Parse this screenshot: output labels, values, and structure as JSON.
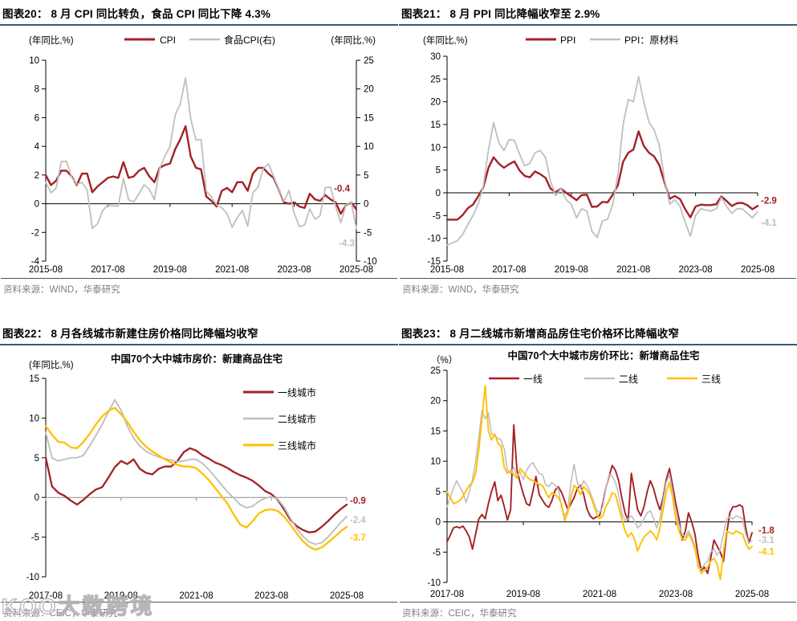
{
  "style": {
    "accent_red": "#A32126",
    "line_gray": "#BFBFBF",
    "line_yellow": "#FFC000",
    "rule_color": "#3D5874",
    "source_text_color": "#7F7F7F"
  },
  "watermark": {
    "text": "KOO大数跨境"
  },
  "chart_data": [
    {
      "type": "line",
      "title": "图表20：  8 月 CPI 同比转负，食品 CPI 同比下降 4.3%",
      "source": "资料来源：WIND，华泰研究",
      "unit_left": "(年同比,%)",
      "unit_right": "(年同比,%)",
      "x_ticks": [
        "2015-08",
        "2017-08",
        "2019-08",
        "2021-08",
        "2023-08",
        "2025-08"
      ],
      "y_left_axis": {
        "min": -4,
        "max": 10,
        "step": 2
      },
      "y_right_axis": {
        "min": -10,
        "max": 25,
        "step": 5
      },
      "legend_position": "top-center-row",
      "series": [
        {
          "name": "CPI",
          "axis": "left",
          "color": "#A32126",
          "end_label": "-0.4",
          "values": [
            2.0,
            1.3,
            1.6,
            2.3,
            2.3,
            1.9,
            1.3,
            2.1,
            2.1,
            0.8,
            1.2,
            1.5,
            1.8,
            1.9,
            1.8,
            2.9,
            1.8,
            1.9,
            2.3,
            2.5,
            1.9,
            1.5,
            2.5,
            2.7,
            2.8,
            3.8,
            4.5,
            5.4,
            3.3,
            2.5,
            2.4,
            0.5,
            0.2,
            -0.2,
            0.9,
            1.1,
            0.8,
            1.5,
            1.5,
            0.9,
            2.1,
            2.5,
            2.5,
            2.1,
            1.8,
            1.0,
            0.1,
            0.0,
            0.1,
            -0.2,
            -0.3,
            0.7,
            0.3,
            0.2,
            0.6,
            0.3,
            0.1,
            -0.7,
            -0.1,
            0.1,
            -0.4
          ]
        },
        {
          "name": "食品CPI(右)",
          "axis": "right",
          "color": "#BFBFBF",
          "end_label": "-4.3",
          "values": [
            3.7,
            1.9,
            2.7,
            7.3,
            7.4,
            4.6,
            3.4,
            3.7,
            2.4,
            -4.3,
            -3.5,
            -1.2,
            -0.2,
            -0.4,
            -0.4,
            4.4,
            0.7,
            0.3,
            1.7,
            3.3,
            2.5,
            0.7,
            6.1,
            8.3,
            10.0,
            15.5,
            17.4,
            21.9,
            14.8,
            11.1,
            11.2,
            2.2,
            1.2,
            -0.2,
            -0.7,
            -1.7,
            -4.1,
            -2.4,
            -1.2,
            -3.9,
            1.9,
            2.9,
            6.1,
            7.0,
            4.8,
            2.6,
            0.4,
            2.3,
            -1.7,
            -4.0,
            -3.7,
            -0.9,
            -2.7,
            -2.1,
            2.8,
            2.9,
            -0.5,
            -3.3,
            -0.2,
            0.3,
            -4.3
          ]
        }
      ]
    },
    {
      "type": "line",
      "title": "图表21：  8 月 PPI 同比降幅收窄至 2.9%",
      "source": "资料来源：WIND，华泰研究",
      "unit_left": "(年同比,%)",
      "x_ticks": [
        "2015-08",
        "2017-08",
        "2019-08",
        "2021-08",
        "2023-08",
        "2025-08"
      ],
      "y_left_axis": {
        "min": -15,
        "max": 30,
        "step": 5
      },
      "legend_position": "top-center-row",
      "series": [
        {
          "name": "PPI",
          "axis": "left",
          "color": "#A32126",
          "end_label": "-2.9",
          "values": [
            -5.9,
            -5.9,
            -5.9,
            -4.9,
            -3.4,
            -2.6,
            -0.8,
            1.2,
            5.5,
            7.8,
            6.4,
            5.5,
            6.3,
            6.9,
            4.9,
            3.7,
            3.4,
            4.7,
            4.1,
            3.3,
            0.9,
            0.1,
            0.9,
            0.0,
            -0.8,
            -1.6,
            -0.5,
            -0.4,
            -3.1,
            -3.0,
            -2.0,
            -2.1,
            -0.4,
            1.7,
            6.8,
            8.8,
            9.5,
            13.5,
            10.3,
            8.8,
            8.0,
            6.1,
            2.3,
            -1.3,
            -0.7,
            -1.4,
            -3.6,
            -5.4,
            -3.0,
            -2.6,
            -2.7,
            -2.7,
            -2.5,
            -0.8,
            -1.8,
            -2.9,
            -2.3,
            -2.2,
            -2.7,
            -3.6,
            -2.9
          ]
        },
        {
          "name": "PPI：原材料",
          "axis": "left",
          "color": "#BFBFBF",
          "end_label": "-4.1",
          "values": [
            -11.5,
            -11.0,
            -10.5,
            -9.2,
            -7.0,
            -5.0,
            -2.5,
            1.5,
            9.5,
            15.4,
            11.0,
            9.3,
            11.7,
            11.5,
            8.5,
            5.9,
            6.5,
            8.8,
            9.3,
            7.8,
            2.5,
            -0.6,
            0.9,
            -1.5,
            -2.5,
            -5.5,
            -3.5,
            -4.0,
            -8.5,
            -9.8,
            -6.2,
            -5.8,
            -2.5,
            4.0,
            15.0,
            20.5,
            20.0,
            25.5,
            20.0,
            15.5,
            13.8,
            10.5,
            3.0,
            -2.5,
            -1.5,
            -3.0,
            -6.5,
            -9.5,
            -5.0,
            -3.5,
            -3.8,
            -4.0,
            -3.5,
            -1.0,
            -3.0,
            -4.5,
            -3.5,
            -3.5,
            -4.5,
            -5.5,
            -4.1
          ]
        }
      ]
    },
    {
      "type": "line",
      "title": "图表22：  8 月各线城市新建住房价格同比降幅均收窄",
      "subtitle": "中国70个大中城市房价：新建商品住宅",
      "source": "资料来源：CEIC，华泰研究",
      "unit_left": "(年同比,%)",
      "x_ticks": [
        "2017-08",
        "2019-08",
        "2021-08",
        "2023-08",
        "2025-08"
      ],
      "y_left_axis": {
        "min": -10,
        "max": 15,
        "step": 5
      },
      "legend_position": "right-column",
      "series": [
        {
          "name": "一线城市",
          "axis": "left",
          "color": "#A32126",
          "end_label": "-0.9",
          "values": [
            5.0,
            1.4,
            0.6,
            0.2,
            -0.4,
            -0.9,
            -0.3,
            0.4,
            1.0,
            1.3,
            2.5,
            3.8,
            4.6,
            4.2,
            4.8,
            3.6,
            3.1,
            2.9,
            3.6,
            3.9,
            3.9,
            4.6,
            5.7,
            6.2,
            5.9,
            5.3,
            4.9,
            4.4,
            4.1,
            3.7,
            3.2,
            2.8,
            2.5,
            2.1,
            1.5,
            0.8,
            0.4,
            -0.3,
            -1.5,
            -2.8,
            -3.6,
            -4.1,
            -4.4,
            -4.3,
            -3.7,
            -3.0,
            -2.2,
            -1.5,
            -0.9
          ]
        },
        {
          "name": "二线城市",
          "axis": "left",
          "color": "#BFBFBF",
          "end_label": "-2.4",
          "values": [
            8.2,
            5.0,
            4.6,
            4.8,
            5.0,
            5.0,
            5.3,
            6.5,
            7.8,
            9.2,
            10.8,
            12.3,
            11.0,
            9.0,
            7.5,
            6.5,
            5.8,
            5.4,
            5.1,
            4.9,
            4.7,
            4.5,
            4.6,
            4.8,
            4.8,
            4.3,
            3.5,
            2.6,
            1.6,
            0.7,
            -0.1,
            -0.9,
            -1.3,
            -1.1,
            -0.5,
            -0.1,
            0.1,
            -0.2,
            -1.2,
            -2.6,
            -3.9,
            -4.9,
            -5.6,
            -5.9,
            -5.7,
            -5.0,
            -4.1,
            -3.2,
            -2.4
          ]
        },
        {
          "name": "三线城市",
          "axis": "left",
          "color": "#FFC000",
          "end_label": "-3.7",
          "values": [
            9.0,
            7.9,
            7.0,
            6.9,
            6.3,
            6.2,
            7.0,
            8.0,
            9.2,
            10.2,
            10.9,
            11.3,
            10.5,
            9.5,
            8.3,
            7.2,
            6.4,
            5.8,
            5.3,
            4.8,
            4.4,
            4.1,
            3.9,
            3.9,
            3.7,
            3.0,
            2.2,
            1.2,
            0.2,
            -0.8,
            -2.2,
            -3.4,
            -3.8,
            -3.0,
            -2.0,
            -1.6,
            -1.5,
            -1.7,
            -2.4,
            -3.4,
            -4.5,
            -5.5,
            -6.2,
            -6.6,
            -6.3,
            -5.7,
            -5.0,
            -4.3,
            -3.7
          ]
        }
      ]
    },
    {
      "type": "line",
      "title": "图表23：  8 月二线城市新增商品房住宅价格环比降幅收窄",
      "subtitle": "中国70个大中城市房价环比：新增商品住宅",
      "source": "资料来源：CEIC，华泰研究",
      "unit_left": "（%）",
      "x_ticks": [
        "2017-08",
        "2019-08",
        "2021-08",
        "2023-08",
        "2025-08"
      ],
      "y_left_axis": {
        "min": -10,
        "max": 25,
        "step": 5
      },
      "legend_position": "top-row",
      "series": [
        {
          "name": "一线",
          "axis": "left",
          "color": "#A32126",
          "end_label": "-1.8",
          "values": [
            -3.3,
            -2.2,
            -1.0,
            -0.8,
            -1.0,
            -0.7,
            -1.5,
            -2.5,
            -4.5,
            -2.0,
            0.5,
            1.2,
            0.5,
            3.0,
            5.0,
            6.6,
            3.5,
            4.4,
            2.5,
            0.3,
            2.0,
            16.0,
            8.5,
            6.5,
            4.6,
            3.0,
            2.7,
            5.0,
            7.5,
            4.5,
            3.6,
            2.8,
            2.4,
            3.5,
            5.2,
            5.8,
            4.9,
            3.5,
            2.0,
            3.0,
            4.0,
            5.5,
            6.0,
            4.5,
            2.2,
            1.0,
            0.5,
            0.8,
            1.0,
            3.0,
            5.6,
            7.5,
            9.3,
            8.5,
            6.8,
            4.0,
            1.5,
            0.2,
            8.0,
            5.0,
            2.0,
            1.0,
            2.5,
            5.0,
            6.8,
            5.5,
            3.5,
            2.0,
            4.0,
            7.0,
            8.8,
            6.0,
            3.0,
            0.5,
            -3.0,
            -1.5,
            1.5,
            0.0,
            -2.0,
            -5.5,
            -8.0,
            -7.5,
            -8.5,
            -6.0,
            -3.0,
            -4.0,
            -5.0,
            -6.5,
            -2.0,
            1.5,
            2.5,
            2.5,
            2.8,
            2.5,
            -1.0,
            -3.5,
            -1.8
          ]
        },
        {
          "name": "二线",
          "axis": "left",
          "color": "#BFBFBF",
          "end_label": "-3.1",
          "values": [
            2.5,
            4.0,
            5.5,
            6.8,
            5.8,
            4.8,
            3.2,
            5.0,
            7.0,
            10.0,
            14.0,
            18.4,
            17.0,
            18.0,
            14.5,
            14.2,
            13.8,
            13.5,
            12.0,
            8.5,
            8.0,
            9.0,
            7.5,
            8.2,
            7.0,
            8.5,
            9.3,
            9.8,
            8.8,
            8.0,
            7.8,
            6.2,
            5.8,
            6.5,
            6.0,
            5.5,
            2.5,
            1.0,
            2.0,
            6.5,
            9.5,
            6.5,
            5.5,
            6.8,
            6.0,
            5.0,
            3.5,
            2.0,
            1.5,
            2.5,
            5.5,
            7.8,
            7.5,
            6.5,
            4.5,
            1.5,
            0.2,
            0.5,
            1.0,
            0.2,
            -1.0,
            -0.5,
            0.5,
            1.5,
            1.8,
            0.5,
            -1.0,
            0.5,
            3.5,
            6.5,
            7.8,
            5.0,
            1.5,
            -0.5,
            -2.0,
            -2.5,
            -1.5,
            -2.5,
            -4.0,
            -7.5,
            -7.8,
            -7.0,
            -6.5,
            -5.0,
            -4.5,
            -5.5,
            -4.5,
            -2.0,
            0.5,
            0.8,
            0.5,
            1.0,
            0.8,
            0.5,
            -2.0,
            -3.5,
            -3.1
          ]
        },
        {
          "name": "三线",
          "axis": "left",
          "color": "#FFC000",
          "end_label": "-4.1",
          "values": [
            5.0,
            4.0,
            3.0,
            3.2,
            3.5,
            4.2,
            5.2,
            6.0,
            6.5,
            8.0,
            12.0,
            17.0,
            22.5,
            15.0,
            13.5,
            14.5,
            13.0,
            12.5,
            9.0,
            8.0,
            8.5,
            7.8,
            7.2,
            8.8,
            8.2,
            7.5,
            7.0,
            6.8,
            6.5,
            6.2,
            6.0,
            5.0,
            4.0,
            4.8,
            4.5,
            4.0,
            3.0,
            0.2,
            1.5,
            4.0,
            6.0,
            5.5,
            4.5,
            5.8,
            5.2,
            4.5,
            3.0,
            1.5,
            0.5,
            1.0,
            2.5,
            3.5,
            4.8,
            4.5,
            2.5,
            0.5,
            -1.5,
            -2.5,
            -1.8,
            -2.8,
            -4.8,
            -3.5,
            -2.5,
            -2.0,
            -1.5,
            -2.0,
            -3.0,
            -1.0,
            2.0,
            5.0,
            6.5,
            4.0,
            0.5,
            -1.5,
            -2.8,
            -3.0,
            -2.0,
            -3.0,
            -4.5,
            -7.0,
            -8.5,
            -8.0,
            -7.5,
            -6.5,
            -6.0,
            -7.0,
            -9.5,
            -5.0,
            -1.5,
            -1.8,
            -2.0,
            -1.5,
            -1.8,
            -2.0,
            -3.5,
            -4.5,
            -4.1
          ]
        }
      ]
    }
  ]
}
